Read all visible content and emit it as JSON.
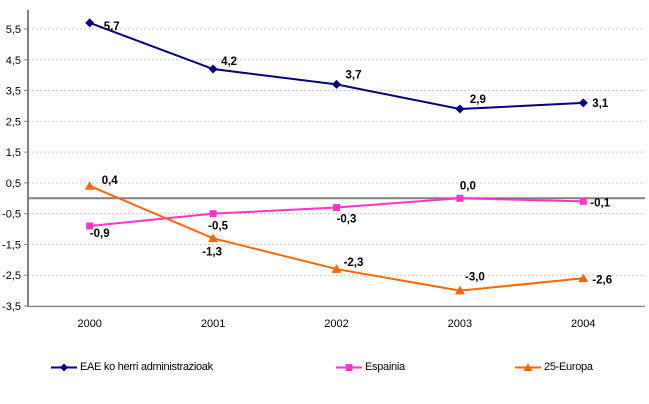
{
  "chart_data": {
    "type": "line",
    "title": "",
    "xlabel": "",
    "ylabel": "",
    "categories": [
      "2000",
      "2001",
      "2002",
      "2003",
      "2004"
    ],
    "series": [
      {
        "name": "EAE ko herri administrazioak",
        "color": "#000080",
        "marker": "diamond",
        "values": [
          5.7,
          4.2,
          3.7,
          2.9,
          3.1
        ],
        "point_labels": [
          "5,7",
          "4,2",
          "3,7",
          "2,9",
          "3,1"
        ]
      },
      {
        "name": "Espainia",
        "color": "#FF33CC",
        "marker": "square",
        "values": [
          -0.9,
          -0.5,
          -0.3,
          0.0,
          -0.1
        ],
        "point_labels": [
          "-0,9",
          "-0,5",
          "-0,3",
          "0,0",
          "-0,1"
        ]
      },
      {
        "name": "25-Europa",
        "color": "#FF6600",
        "marker": "triangle",
        "values": [
          0.4,
          -1.3,
          -2.3,
          -3.0,
          -2.6
        ],
        "point_labels": [
          "0,4",
          "-1,3",
          "-2,3",
          "-3,0",
          "-2,6"
        ]
      }
    ],
    "ylim": [
      -3.5,
      5.5
    ],
    "ytick_values": [
      5.5,
      4.5,
      3.5,
      2.5,
      1.5,
      0.5,
      -0.5,
      -1.5,
      -2.5,
      -3.5
    ],
    "ytick_labels": [
      "5,5",
      "4,5",
      "3,5",
      "2,5",
      "1,5",
      "0,5",
      "-0,5",
      "-1,5",
      "-2,5",
      "-3,5"
    ],
    "grid": true,
    "zero_line": true,
    "legend_position": "bottom",
    "colors": {
      "axis": "#808080",
      "gridline": "#C9C9C9",
      "zero_line": "#808080",
      "label_text": "#000000",
      "background": "#FFFFFF"
    }
  }
}
